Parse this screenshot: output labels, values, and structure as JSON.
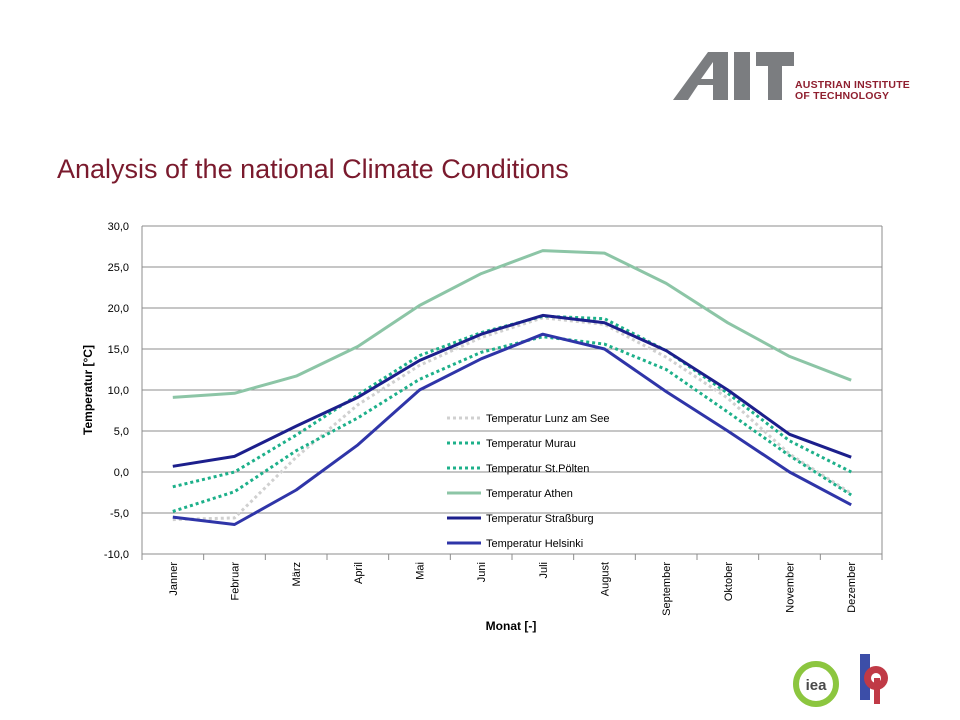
{
  "header": {
    "logo_mark": "AIT",
    "logo_line1": "AUSTRIAN INSTITUTE",
    "logo_line2": "OF TECHNOLOGY",
    "title": "Analysis of the national Climate Conditions"
  },
  "footer": {
    "iea_logo": "iea",
    "partner_logo": "bp"
  },
  "colors": {
    "title": "#7a1a2d",
    "logo_gray": "#7b7d80",
    "logo_red": "#8f1f2f"
  },
  "chart_data": {
    "type": "line",
    "title": "",
    "xlabel": "Monat [-]",
    "ylabel": "Temperatur [°C]",
    "ylim": [
      -10,
      30
    ],
    "yticks": [
      30,
      25,
      20,
      15,
      10,
      5,
      0,
      -5,
      -10
    ],
    "ytick_labels": [
      "30,0",
      "25,0",
      "20,0",
      "15,0",
      "10,0",
      "5,0",
      "0,0",
      "-5,0",
      "-10,0"
    ],
    "grid": "horizontal",
    "legend_position": "center-inside",
    "categories": [
      "Janner",
      "Februar",
      "März",
      "April",
      "Mai",
      "Juni",
      "Juli",
      "August",
      "September",
      "Oktober",
      "November",
      "Dezember"
    ],
    "series": [
      {
        "name": "Temperatur Lunz am See",
        "color": "#d0d0d0",
        "style": "dotted",
        "values": [
          -5.8,
          -5.6,
          1.8,
          8.2,
          13.0,
          16.4,
          18.8,
          18.0,
          14.0,
          9.0,
          2.2,
          -2.6
        ]
      },
      {
        "name": "Temperatur Murau",
        "color": "#1db08a",
        "style": "dotted",
        "values": [
          -4.8,
          -2.4,
          2.6,
          6.6,
          11.3,
          14.6,
          16.5,
          15.6,
          12.5,
          7.3,
          2.0,
          -2.8
        ]
      },
      {
        "name": "Temperatur St.Pölten",
        "color": "#1db08a",
        "style": "dotted",
        "values": [
          -1.8,
          0.0,
          4.5,
          9.4,
          14.2,
          17.0,
          19.0,
          18.7,
          14.8,
          9.6,
          3.8,
          0.0
        ]
      },
      {
        "name": "Temperatur Athen",
        "color": "#8cc5a6",
        "style": "solid",
        "values": [
          9.1,
          9.6,
          11.7,
          15.3,
          20.3,
          24.2,
          27.0,
          26.7,
          23.0,
          18.2,
          14.1,
          11.2
        ]
      },
      {
        "name": "Temperatur Straßburg",
        "color": "#1c1f8c",
        "style": "solid",
        "values": [
          0.7,
          1.9,
          5.6,
          9.1,
          13.6,
          16.8,
          19.1,
          18.2,
          14.8,
          10.0,
          4.6,
          1.8
        ]
      },
      {
        "name": "Temperatur Helsinki",
        "color": "#2f35a8",
        "style": "solid",
        "values": [
          -5.5,
          -6.4,
          -2.2,
          3.3,
          10.0,
          13.8,
          16.8,
          15.0,
          9.8,
          5.0,
          0.0,
          -4.0
        ]
      }
    ]
  }
}
